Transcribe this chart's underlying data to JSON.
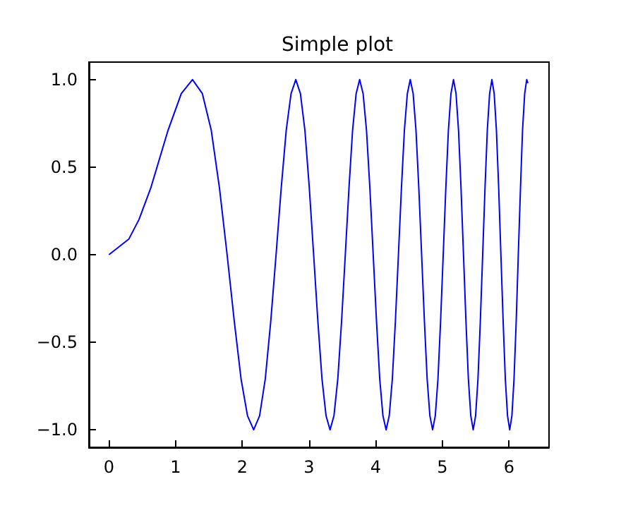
{
  "chart_data": {
    "type": "line",
    "title": "Simple plot",
    "x": [
      0,
      0.3,
      0.45,
      0.6267,
      0.8862,
      1.0854,
      1.2533,
      1.4012,
      1.535,
      1.658,
      1.7725,
      1.88,
      1.9817,
      2.0784,
      2.1708,
      2.2594,
      2.3448,
      2.427,
      2.5066,
      2.5838,
      2.6587,
      2.7315,
      2.8025,
      2.8717,
      2.9393,
      3.0053,
      3.07,
      3.1333,
      3.1954,
      3.2562,
      3.316,
      3.3747,
      3.4324,
      3.4891,
      3.5449,
      3.5999,
      3.654,
      3.7074,
      3.7599,
      3.8118,
      3.8629,
      3.9135,
      3.9633,
      4.0126,
      4.0612,
      4.1093,
      4.1568,
      4.2037,
      4.2502,
      4.2962,
      4.3416,
      4.3866,
      4.4311,
      4.4753,
      4.5189,
      4.5622,
      4.605,
      4.6474,
      4.6895,
      4.7312,
      4.7725,
      4.8134,
      4.8541,
      4.8944,
      4.9344,
      4.9739,
      5.0133,
      5.0523,
      5.091,
      5.1294,
      5.1675,
      5.2054,
      5.2429,
      5.2803,
      5.3174,
      5.3542,
      5.3907,
      5.427,
      5.463,
      5.4989,
      5.5344,
      5.5699,
      5.605,
      5.6399,
      5.6745,
      5.7091,
      5.7433,
      5.7775,
      5.8112,
      5.8451,
      5.8783,
      5.9119,
      5.9447,
      5.9779,
      6.0103,
      6.0433,
      6.0751,
      6.1079,
      6.1392,
      6.1719,
      6.2026,
      6.2352,
      6.2654,
      6.2832
    ],
    "series": [
      {
        "color": "#0000ff",
        "values": [
          0,
          0.09,
          0.2,
          0.38,
          0.71,
          0.92,
          1,
          0.92,
          0.71,
          0.38,
          0,
          -0.38,
          -0.71,
          -0.92,
          -1,
          -0.92,
          -0.71,
          -0.38,
          0,
          0.38,
          0.71,
          0.92,
          1,
          0.92,
          0.71,
          0.38,
          0,
          -0.38,
          -0.71,
          -0.92,
          -1,
          -0.92,
          -0.71,
          -0.38,
          0,
          0.38,
          0.71,
          0.92,
          1,
          0.92,
          0.71,
          0.38,
          0,
          -0.38,
          -0.71,
          -0.92,
          -1,
          -0.92,
          -0.71,
          -0.38,
          0,
          0.38,
          0.71,
          0.92,
          1,
          0.92,
          0.71,
          0.38,
          0,
          -0.38,
          -0.71,
          -0.92,
          -1,
          -0.92,
          -0.71,
          -0.38,
          0,
          0.38,
          0.71,
          0.92,
          1,
          0.92,
          0.71,
          0.38,
          0,
          -0.38,
          -0.71,
          -0.92,
          -1,
          -0.92,
          -0.71,
          -0.38,
          0,
          0.38,
          0.71,
          0.92,
          1,
          0.92,
          0.71,
          0.38,
          0,
          -0.38,
          -0.71,
          -0.92,
          -1,
          -0.92,
          -0.71,
          -0.38,
          0,
          0.38,
          0.71,
          0.92,
          1,
          0.98
        ]
      }
    ],
    "xlim": [
      -0.3,
      6.6
    ],
    "xticks": [
      0,
      1,
      2,
      3,
      4,
      5,
      6
    ],
    "ylim": [
      -1.1,
      1.1
    ],
    "yticks": [
      {
        "value": -1,
        "label": "−1.0"
      },
      {
        "value": -0.5,
        "label": "−0.5"
      },
      {
        "value": 0,
        "label": "0.0"
      },
      {
        "value": 0.5,
        "label": "0.5"
      },
      {
        "value": 1,
        "label": "1.0"
      }
    ],
    "grid": false,
    "marker": "none",
    "line_style": "solid"
  }
}
